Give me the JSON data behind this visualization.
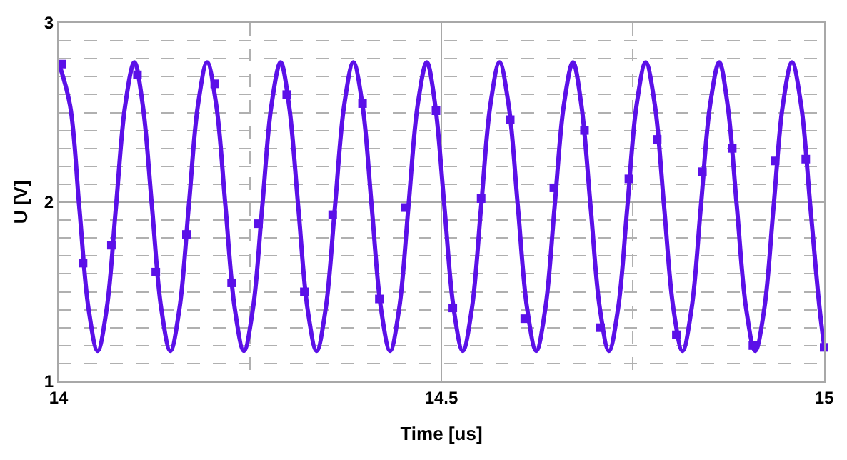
{
  "chart_data": {
    "type": "line",
    "xlabel": "Time [us]",
    "ylabel": "U [V]",
    "xlim": [
      14,
      15
    ],
    "ylim": [
      1,
      3
    ],
    "xticks": [
      14,
      {
        "value": 14.25,
        "label": null
      },
      14.5,
      {
        "value": 14.75,
        "label": null
      },
      15
    ],
    "yticks": [
      1,
      {
        "value": 1.1,
        "label": null
      },
      {
        "value": 1.2,
        "label": null
      },
      {
        "value": 1.3,
        "label": null
      },
      {
        "value": 1.4,
        "label": null
      },
      {
        "value": 1.5,
        "label": null
      },
      {
        "value": 1.6,
        "label": null
      },
      {
        "value": 1.7,
        "label": null
      },
      {
        "value": 1.8,
        "label": null
      },
      {
        "value": 1.9,
        "label": null
      },
      2,
      {
        "value": 2.1,
        "label": null
      },
      {
        "value": 2.2,
        "label": null
      },
      {
        "value": 2.3,
        "label": null
      },
      {
        "value": 2.4,
        "label": null
      },
      {
        "value": 2.5,
        "label": null
      },
      {
        "value": 2.6,
        "label": null
      },
      {
        "value": 2.7,
        "label": null
      },
      {
        "value": 2.8,
        "label": null
      },
      {
        "value": 2.9,
        "label": null
      },
      3
    ],
    "grid": true,
    "series": [
      {
        "color": "#5b10e8",
        "x": [
          14.0,
          14.015,
          14.027,
          14.039,
          14.051,
          14.063,
          14.075,
          14.087,
          14.099,
          14.11,
          14.122,
          14.134,
          14.146,
          14.158,
          14.17,
          14.182,
          14.194,
          14.206,
          14.218,
          14.23,
          14.242,
          14.254,
          14.266,
          14.278,
          14.29,
          14.301,
          14.313,
          14.325,
          14.337,
          14.349,
          14.361,
          14.373,
          14.385,
          14.397,
          14.409,
          14.421,
          14.433,
          14.445,
          14.457,
          14.469,
          14.481,
          14.492,
          14.504,
          14.516,
          14.528,
          14.54,
          14.552,
          14.564,
          14.576,
          14.588,
          14.6,
          14.612,
          14.624,
          14.636,
          14.648,
          14.66,
          14.672,
          14.683,
          14.695,
          14.707,
          14.719,
          14.731,
          14.743,
          14.755,
          14.767,
          14.779,
          14.791,
          14.803,
          14.815,
          14.827,
          14.839,
          14.851,
          14.863,
          14.874,
          14.886,
          14.898,
          14.91,
          14.922,
          14.934,
          14.946,
          14.958,
          14.97,
          14.982,
          14.994,
          15.0
        ],
        "values": [
          2.78,
          2.54,
          1.975,
          1.41,
          1.17,
          1.41,
          1.975,
          2.54,
          2.78,
          2.54,
          1.975,
          1.41,
          1.17,
          1.41,
          1.975,
          2.54,
          2.78,
          2.54,
          1.975,
          1.41,
          1.17,
          1.41,
          1.975,
          2.54,
          2.78,
          2.54,
          1.975,
          1.41,
          1.17,
          1.41,
          1.975,
          2.54,
          2.78,
          2.54,
          1.975,
          1.41,
          1.17,
          1.41,
          1.975,
          2.54,
          2.78,
          2.54,
          1.975,
          1.41,
          1.17,
          1.41,
          1.975,
          2.54,
          2.78,
          2.54,
          1.975,
          1.41,
          1.17,
          1.41,
          1.975,
          2.54,
          2.78,
          2.54,
          1.975,
          1.41,
          1.17,
          1.41,
          1.975,
          2.54,
          2.78,
          2.54,
          1.975,
          1.41,
          1.17,
          1.41,
          1.975,
          2.54,
          2.78,
          2.54,
          1.975,
          1.41,
          1.17,
          1.41,
          1.975,
          2.54,
          2.78,
          2.54,
          1.975,
          1.41,
          1.2
        ]
      },
      {
        "type": "scatter",
        "marker": "square",
        "color": "#5b10e8",
        "x": [
          14.004,
          14.032,
          14.069,
          14.103,
          14.127,
          14.167,
          14.204,
          14.226,
          14.261,
          14.298,
          14.321,
          14.358,
          14.397,
          14.419,
          14.453,
          14.493,
          14.515,
          14.552,
          14.59,
          14.609,
          14.647,
          14.687,
          14.708,
          14.745,
          14.782,
          14.807,
          14.841,
          14.88,
          14.907,
          14.936,
          14.976,
          15.0
        ],
        "values": [
          2.77,
          1.66,
          1.76,
          2.71,
          1.61,
          1.82,
          2.66,
          1.55,
          1.88,
          2.6,
          1.5,
          1.93,
          2.55,
          1.46,
          1.97,
          2.51,
          1.41,
          2.02,
          2.46,
          1.35,
          2.08,
          2.4,
          1.3,
          2.13,
          2.35,
          1.26,
          2.17,
          2.3,
          1.2,
          2.23,
          2.24,
          1.19
        ]
      }
    ]
  }
}
